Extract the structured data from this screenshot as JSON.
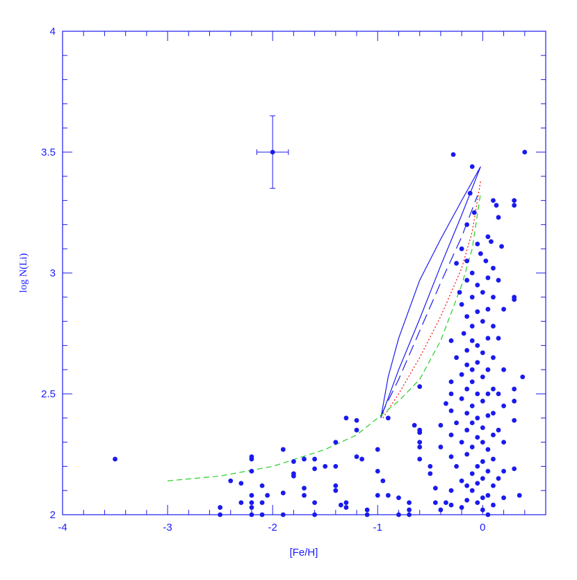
{
  "chart_data": {
    "type": "scatter",
    "x_label": "[Fe/H]",
    "y_label": "log N(Li)",
    "xlim": [
      -4,
      0.6
    ],
    "ylim": [
      2,
      4
    ],
    "xticks": [
      -4,
      -3,
      -2,
      -1,
      0
    ],
    "yticks": [
      2,
      2.5,
      3,
      3.5,
      4
    ],
    "xminorticks": [
      -3.8,
      -3.6,
      -3.4,
      -3.2,
      -2.8,
      -2.6,
      -2.4,
      -2.2,
      -1.8,
      -1.6,
      -1.4,
      -1.2,
      -0.8,
      -0.6,
      -0.4,
      -0.2,
      0.2,
      0.4
    ],
    "yminorticks": [
      2.1,
      2.2,
      2.3,
      2.4,
      2.6,
      2.7,
      2.8,
      2.9,
      3.1,
      3.2,
      3.3,
      3.4,
      3.6,
      3.7,
      3.8,
      3.9
    ],
    "color": "#1a1aee",
    "x": [
      -3.5,
      -2.5,
      -2.5,
      -2.4,
      -2.3,
      -2.3,
      -2.2,
      -2.2,
      -2.2,
      -2.2,
      -2.2,
      -2.2,
      -2.2,
      -2.1,
      -2.1,
      -2.1,
      -2.05,
      -1.9,
      -1.9,
      -1.9,
      -1.8,
      -1.8,
      -1.8,
      -1.7,
      -1.7,
      -1.7,
      -1.6,
      -1.6,
      -1.6,
      -1.6,
      -1.5,
      -1.4,
      -1.4,
      -1.4,
      -1.4,
      -1.35,
      -1.3,
      -1.3,
      -1.3,
      -1.2,
      -1.2,
      -1.2,
      -1.15,
      -1.1,
      -1.1,
      -1.0,
      -1.0,
      -1.0,
      -0.95,
      -0.9,
      -0.9,
      -0.8,
      -0.8,
      -0.7,
      -0.7,
      -0.7,
      -0.65,
      -0.6,
      -0.6,
      -0.6,
      -0.6,
      -0.6,
      -0.6,
      -0.5,
      -0.5,
      -0.45,
      -0.45,
      -0.4,
      -0.4,
      -0.4,
      -0.35,
      -0.35,
      -0.3,
      -0.3,
      -0.3,
      -0.3,
      -0.3,
      -0.3,
      -0.3,
      -0.3,
      -0.28,
      -0.25,
      -0.25,
      -0.25,
      -0.25,
      -0.22,
      -0.2,
      -0.2,
      -0.2,
      -0.2,
      -0.2,
      -0.2,
      -0.2,
      -0.18,
      -0.15,
      -0.15,
      -0.15,
      -0.15,
      -0.15,
      -0.15,
      -0.15,
      -0.15,
      -0.15,
      -0.15,
      -0.15,
      -0.15,
      -0.12,
      -0.1,
      -0.1,
      -0.1,
      -0.1,
      -0.1,
      -0.1,
      -0.1,
      -0.1,
      -0.1,
      -0.1,
      -0.1,
      -0.1,
      -0.08,
      -0.05,
      -0.05,
      -0.05,
      -0.05,
      -0.05,
      -0.05,
      -0.05,
      -0.05,
      -0.05,
      -0.05,
      -0.05,
      -0.02,
      0,
      0,
      0,
      0,
      0,
      0,
      0,
      0,
      0,
      0,
      0,
      0.03,
      0.05,
      0.05,
      0.05,
      0.05,
      0.05,
      0.05,
      0.05,
      0.05,
      0.05,
      0.05,
      0.05,
      0.08,
      0.1,
      0.1,
      0.1,
      0.1,
      0.1,
      0.1,
      0.1,
      0.1,
      0.1,
      0.1,
      0.1,
      0.13,
      0.15,
      0.15,
      0.15,
      0.15,
      0.15,
      0.15,
      0.18,
      0.2,
      0.2,
      0.2,
      0.2,
      0.2,
      0.2,
      0.3,
      0.3,
      0.3,
      0.3,
      0.3,
      0.3,
      0.3,
      0.3,
      0.35,
      0.38,
      0.4
    ],
    "values": [
      2.23,
      2.03,
      2.0,
      2.14,
      2.05,
      2.13,
      2.24,
      2.23,
      2.18,
      2.08,
      2.05,
      2.03,
      2.0,
      2.12,
      2.05,
      2.0,
      2.08,
      2.27,
      2.09,
      2.0,
      2.22,
      2.17,
      2.16,
      2.23,
      2.11,
      2.08,
      2.23,
      2.19,
      2.05,
      2.0,
      2.2,
      2.3,
      2.2,
      2.12,
      2.1,
      2.04,
      2.4,
      2.05,
      2.03,
      2.39,
      2.35,
      2.24,
      2.23,
      2.02,
      2.0,
      2.27,
      2.18,
      2.08,
      2.14,
      2.4,
      2.08,
      2.07,
      2.0,
      2.05,
      2.02,
      2.0,
      2.37,
      2.53,
      2.35,
      2.34,
      2.3,
      2.28,
      2.23,
      2.2,
      2.17,
      2.11,
      2.05,
      2.37,
      2.28,
      2.02,
      2.46,
      2.05,
      2.72,
      2.55,
      2.5,
      2.43,
      2.33,
      2.24,
      2.1,
      2.04,
      3.49,
      3.04,
      2.65,
      2.38,
      2.2,
      2.92,
      3.1,
      2.87,
      2.58,
      2.48,
      2.3,
      2.14,
      2.03,
      2.75,
      3.2,
      3.05,
      2.97,
      2.82,
      2.68,
      2.62,
      2.52,
      2.42,
      2.35,
      2.25,
      2.12,
      2.06,
      3.33,
      3.44,
      3.0,
      2.9,
      2.78,
      2.72,
      2.6,
      2.55,
      2.45,
      2.38,
      2.28,
      2.17,
      2.1,
      3.25,
      3.12,
      2.95,
      2.84,
      2.7,
      2.63,
      2.5,
      2.4,
      2.32,
      2.2,
      2.13,
      2.05,
      3.08,
      2.92,
      2.8,
      2.67,
      2.57,
      2.47,
      2.36,
      2.3,
      2.22,
      2.15,
      2.07,
      2.02,
      3.05,
      3.15,
      2.98,
      2.85,
      2.73,
      2.6,
      2.5,
      2.41,
      2.27,
      2.18,
      2.08,
      2.0,
      3.13,
      3.3,
      3.02,
      2.9,
      2.78,
      2.65,
      2.52,
      2.42,
      2.33,
      2.23,
      2.12,
      2.04,
      3.28,
      3.23,
      2.97,
      2.73,
      2.5,
      2.35,
      2.15,
      3.11,
      2.85,
      2.6,
      2.45,
      2.3,
      2.18,
      2.07,
      3.3,
      3.28,
      2.9,
      2.89,
      2.52,
      2.47,
      2.39,
      2.19,
      2.08,
      2.57,
      3.5
    ],
    "errorbar": {
      "x": -2,
      "y": 3.5,
      "xerr": 0.15,
      "yerr": 0.15
    },
    "lines": [
      {
        "color": "#1a1aee",
        "style": "solid",
        "x": [
          -0.97,
          -0.9,
          -0.8,
          -0.6,
          -0.4,
          -0.2,
          -0.02,
          -0.2,
          -0.4,
          -0.6,
          -0.8,
          -0.97
        ],
        "values": [
          2.4,
          2.57,
          2.73,
          2.97,
          3.14,
          3.3,
          3.44,
          3.24,
          3.03,
          2.81,
          2.6,
          2.4
        ]
      },
      {
        "color": "#1a1aee",
        "style": "longdash",
        "x": [
          -0.97,
          -0.8,
          -0.6,
          -0.4,
          -0.2,
          -0.05
        ],
        "values": [
          2.41,
          2.56,
          2.76,
          2.96,
          3.15,
          3.32
        ]
      },
      {
        "color": "#ff0000",
        "style": "dotted",
        "x": [
          -0.95,
          -0.8,
          -0.6,
          -0.4,
          -0.2,
          -0.1,
          -0.02
        ],
        "values": [
          2.4,
          2.5,
          2.65,
          2.82,
          3.02,
          3.17,
          3.38
        ]
      },
      {
        "color": "#22cc22",
        "style": "dashed",
        "x": [
          -3,
          -2.5,
          -2,
          -1.5,
          -1.2,
          -1,
          -0.8,
          -0.6,
          -0.4,
          -0.2,
          -0.1,
          -0.02
        ],
        "values": [
          2.14,
          2.16,
          2.2,
          2.27,
          2.33,
          2.4,
          2.47,
          2.56,
          2.72,
          2.95,
          3.1,
          3.33
        ]
      }
    ]
  }
}
